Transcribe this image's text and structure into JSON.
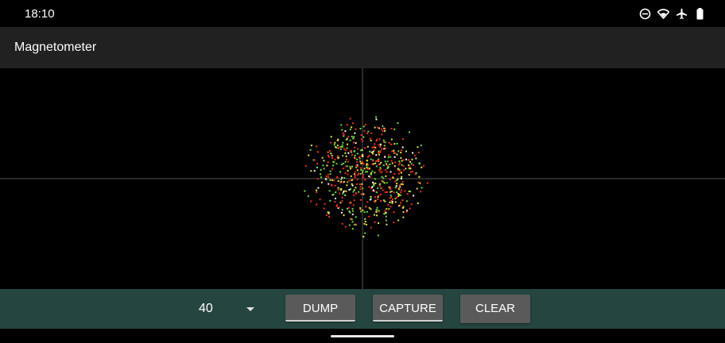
{
  "status_bar": {
    "time": "18:10",
    "icons": [
      "do-not-disturb-icon",
      "wifi-icon",
      "airplane-mode-icon",
      "battery-icon"
    ]
  },
  "app_bar": {
    "title": "Magnetometer"
  },
  "plot": {
    "axis_color": "#555555",
    "point_colors": [
      "#ff2a1a",
      "#66e23a",
      "#e8e83a",
      "#ffffff"
    ]
  },
  "controls": {
    "spinner": {
      "value": "40"
    },
    "dump_label": "DUMP",
    "capture_label": "CAPTURE",
    "clear_label": "CLEAR"
  },
  "colors": {
    "app_bar": "#212121",
    "control_bar": "#244540",
    "button": "#5a5a5a"
  }
}
